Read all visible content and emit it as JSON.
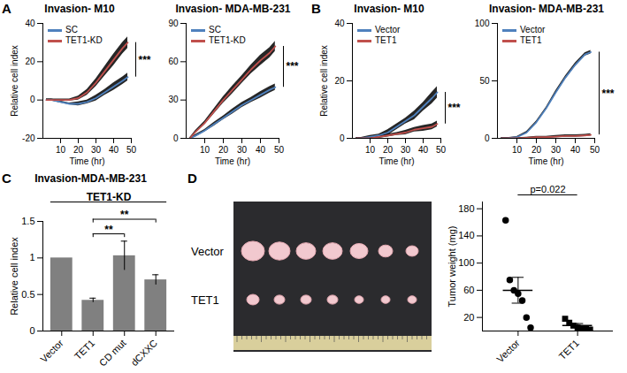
{
  "chart_data": [
    {
      "panel": "A",
      "type": "line",
      "title": "Invasion- M10",
      "x_label": "Time (hr)",
      "y_label": "Relative cell index",
      "x": [
        2,
        5,
        10,
        15,
        20,
        25,
        30,
        35,
        40,
        45,
        48
      ],
      "xlim": [
        0,
        50
      ],
      "xticks": [
        10,
        20,
        30,
        40,
        50
      ],
      "ylim": [
        -20,
        40
      ],
      "yticks": [
        -20,
        0,
        20,
        40
      ],
      "legend": "top-left",
      "series": [
        {
          "name": "SC",
          "color": "#4f81bd",
          "values": [
            0,
            0,
            -1,
            -2,
            -2,
            -1,
            1,
            4,
            7,
            10,
            12
          ],
          "errors": [
            0.5,
            0.5,
            0.5,
            0.5,
            1,
            1,
            1.5,
            1.5,
            2,
            2,
            2
          ]
        },
        {
          "name": "TET1-KD",
          "color": "#c0504d",
          "values": [
            0,
            0,
            0,
            0,
            1,
            4,
            9,
            15,
            21,
            27,
            30
          ],
          "errors": [
            0.5,
            0.5,
            0.5,
            0.5,
            1,
            1.5,
            2,
            2.5,
            3,
            3,
            3
          ]
        }
      ],
      "annotations": [
        {
          "text": "***"
        }
      ]
    },
    {
      "type": "line",
      "title": "Invasion- MDA-MB-231",
      "x_label": "Time (hr)",
      "x": [
        2,
        5,
        10,
        15,
        20,
        25,
        30,
        35,
        40,
        45,
        48
      ],
      "xlim": [
        0,
        50
      ],
      "xticks": [
        10,
        20,
        30,
        40,
        50
      ],
      "ylim": [
        0,
        90
      ],
      "yticks": [
        0,
        30,
        60,
        90
      ],
      "legend": "top-left",
      "series": [
        {
          "name": "SC",
          "color": "#4f81bd",
          "values": [
            0,
            2,
            6,
            11,
            16,
            21,
            26,
            30,
            34,
            38,
            40
          ],
          "errors": [
            0.5,
            1,
            1,
            1.5,
            1.5,
            2,
            2,
            2,
            2.5,
            2.5,
            2.5
          ]
        },
        {
          "name": "TET1-KD",
          "color": "#c0504d",
          "values": [
            0,
            5,
            12,
            21,
            30,
            38,
            46,
            54,
            61,
            67,
            72
          ],
          "errors": [
            0.5,
            1,
            1.5,
            2,
            2.5,
            3,
            3,
            3.5,
            4,
            4,
            4
          ]
        }
      ],
      "annotations": [
        {
          "text": "***"
        }
      ]
    },
    {
      "panel": "B",
      "type": "line",
      "title": "Invasion- M10",
      "x_label": "Time (hr)",
      "y_label": "Relative cell index",
      "x": [
        2,
        5,
        10,
        15,
        20,
        25,
        30,
        35,
        40,
        45,
        48
      ],
      "xlim": [
        0,
        50
      ],
      "xticks": [
        10,
        20,
        30,
        40,
        50
      ],
      "ylim": [
        0,
        40
      ],
      "yticks": [
        0,
        20,
        40
      ],
      "legend": "top-left",
      "series": [
        {
          "name": "Vector",
          "color": "#4f81bd",
          "values": [
            0,
            0,
            0.5,
            1,
            2,
            4,
            6,
            8,
            11,
            14,
            16
          ],
          "errors": [
            0.3,
            0.3,
            0.5,
            0.5,
            1,
            1,
            1,
            1.5,
            1.5,
            2,
            2
          ]
        },
        {
          "name": "TET1",
          "color": "#c0504d",
          "values": [
            0,
            0,
            0,
            0.5,
            1,
            1.5,
            2,
            3,
            3.5,
            4,
            5
          ],
          "errors": [
            0.3,
            0.3,
            0.3,
            0.5,
            0.5,
            0.5,
            0.8,
            0.8,
            1,
            1,
            1
          ]
        }
      ],
      "annotations": [
        {
          "text": "***"
        }
      ]
    },
    {
      "type": "line",
      "title": "Invasion- MDA-MB-231",
      "x_label": "Time (hr)",
      "x": [
        2,
        5,
        10,
        15,
        20,
        25,
        30,
        35,
        40,
        45,
        48
      ],
      "xlim": [
        0,
        50
      ],
      "xticks": [
        10,
        20,
        30,
        40,
        50
      ],
      "ylim": [
        0,
        100
      ],
      "yticks": [
        0,
        50,
        100
      ],
      "legend": "top-left",
      "series": [
        {
          "name": "Vector",
          "color": "#4f81bd",
          "values": [
            0,
            0,
            1,
            5,
            14,
            26,
            40,
            53,
            64,
            73,
            75
          ],
          "errors": [
            0.5,
            0.5,
            0.5,
            1,
            1,
            1,
            1.5,
            1.5,
            1.5,
            1.5,
            1.5
          ]
        },
        {
          "name": "TET1",
          "color": "#c0504d",
          "values": [
            0,
            0,
            0,
            0.5,
            1,
            1,
            1.5,
            2,
            2,
            2.5,
            3
          ],
          "errors": [
            0.5,
            0.5,
            0.5,
            0.5,
            0.8,
            0.8,
            1,
            1,
            1,
            1,
            1
          ]
        }
      ],
      "annotations": [
        {
          "text": "***"
        }
      ]
    },
    {
      "panel": "C",
      "type": "bar",
      "title": "Invasion-MDA-MB-231",
      "y_label": "Relative cell index",
      "categories": [
        "Vector",
        "TET1",
        "CD mut",
        "dCXXC"
      ],
      "values": [
        1,
        0.42,
        1.03,
        0.7
      ],
      "errors": [
        0,
        0.03,
        0.2,
        0.07
      ],
      "color": "#808080",
      "ylim": [
        0,
        1.5
      ],
      "yticks": [
        0,
        0.5,
        1,
        1.5
      ],
      "group": {
        "label": "TET1-KD",
        "from": "Vector",
        "to": "dCXXC"
      },
      "annotations": [
        {
          "text": "**",
          "from": "TET1",
          "to": "CD mut"
        },
        {
          "text": "**",
          "from": "TET1",
          "to": "dCXXC"
        }
      ]
    },
    {
      "panel": "D",
      "type": "image",
      "row_labels": [
        "Vector",
        "TET1"
      ]
    },
    {
      "type": "scatter",
      "y_label": "Tumor weight (mg)",
      "ylim": [
        0,
        190
      ],
      "yticks": [
        20,
        60,
        100,
        140,
        180
      ],
      "series": [
        {
          "name": "Vector",
          "color": "#000000",
          "marker": "circle",
          "values": [
            163,
            75,
            60,
            55,
            45,
            20,
            5
          ],
          "mean": 60,
          "sem": 19
        },
        {
          "name": "TET1",
          "color": "#000000",
          "marker": "square",
          "values": [
            18,
            12,
            8,
            5,
            4,
            3,
            2
          ],
          "mean": 8,
          "sem": 3
        }
      ],
      "annotations": [
        {
          "text": "p=0.022",
          "from": "Vector",
          "to": "TET1"
        }
      ]
    }
  ]
}
